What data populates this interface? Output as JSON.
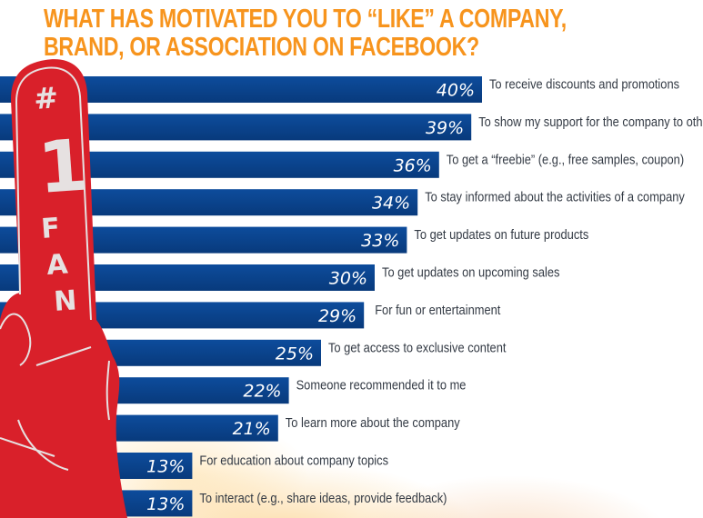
{
  "chart_data": {
    "type": "bar",
    "orientation": "horizontal",
    "title": "WHAT HAS MOTIVATED YOU TO “LIKE” A COMPANY,\nBRAND, OR ASSOCIATION ON FACEBOOK?",
    "xlabel": "",
    "ylabel": "",
    "xlim": [
      0,
      40
    ],
    "grid": false,
    "legend": "none",
    "value_suffix": "%",
    "categories": [
      "To receive discounts and promotions",
      "To show my support for the company to others",
      "To get a “freebie” (e.g., free samples, coupon)",
      "To stay informed about the  activities of a company",
      "To get updates on future products",
      "To get updates on upcoming sales",
      "For fun or entertainment",
      "To get access to exclusive content",
      "Someone recommended it to me",
      "To learn more about the company",
      "For education about company topics",
      "To interact (e.g., share ideas, provide feedback)"
    ],
    "values": [
      40,
      39,
      36,
      34,
      33,
      30,
      29,
      25,
      22,
      21,
      13,
      13
    ],
    "data_labels": [
      "40%",
      "39%",
      "36%",
      "34%",
      "33%",
      "30%",
      "29%",
      "25%",
      "22%",
      "21%",
      "13%",
      "13%"
    ]
  },
  "decoration": {
    "foam_finger_text": [
      "#",
      "1",
      "F",
      "A",
      "N"
    ]
  },
  "colors": {
    "title": "#f7941d",
    "bar": "#0d4c9c",
    "bar_dark": "#083a7c",
    "bar_label": "#ffffff",
    "category_label": "#333a44",
    "foam_finger": "#d9202a",
    "foam_text": "#e6e1e1"
  }
}
